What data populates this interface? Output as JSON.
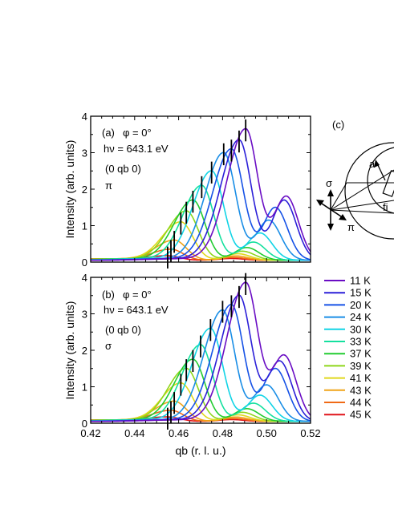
{
  "chart_data": [
    {
      "type": "line",
      "panel": "(a)",
      "annotations": [
        "φ = 0°",
        "hν = 643.1 eV",
        "(0 qb 0)",
        "π"
      ],
      "ylabel": "Intensity (arb. units)",
      "xlim": [
        0.42,
        0.52
      ],
      "ylim": [
        0,
        4
      ],
      "y_ticks": [
        "0",
        "1",
        "2",
        "3",
        "4"
      ],
      "series": [
        {
          "name": "11 K",
          "color": "#6a0dc4",
          "peak_x": 0.4905,
          "peak_y": 3.6,
          "sat_x": 0.509,
          "sat_y": 1.75
        },
        {
          "name": "15 K",
          "color": "#2b1fd8",
          "peak_x": 0.4875,
          "peak_y": 3.3,
          "sat_x": 0.508,
          "sat_y": 1.65
        },
        {
          "name": "20 K",
          "color": "#1652e6",
          "peak_x": 0.484,
          "peak_y": 3.05,
          "sat_x": 0.504,
          "sat_y": 1.45
        },
        {
          "name": "24 K",
          "color": "#1a8ee6",
          "peak_x": 0.4805,
          "peak_y": 2.95,
          "sat_x": 0.501,
          "sat_y": 1.1
        },
        {
          "name": "30 K",
          "color": "#12d4e6",
          "peak_x": 0.475,
          "peak_y": 2.45,
          "sat_x": 0.497,
          "sat_y": 0.75
        },
        {
          "name": "33 K",
          "color": "#14e09e",
          "peak_x": 0.4705,
          "peak_y": 2.05,
          "sat_x": 0.494,
          "sat_y": 0.5
        },
        {
          "name": "37 K",
          "color": "#22cc30",
          "peak_x": 0.4665,
          "peak_y": 1.65,
          "sat_x": 0.491,
          "sat_y": 0.35
        },
        {
          "name": "39 K",
          "color": "#8ed61a",
          "peak_x": 0.4635,
          "peak_y": 1.35,
          "sat_x": 0.489,
          "sat_y": 0.25
        },
        {
          "name": "41 K",
          "color": "#e0d81c",
          "peak_x": 0.461,
          "peak_y": 1.05,
          "sat_x": 0.487,
          "sat_y": 0.18
        },
        {
          "name": "43 K",
          "color": "#f0a418",
          "peak_x": 0.458,
          "peak_y": 0.55,
          "sat_x": 0.486,
          "sat_y": 0.12
        },
        {
          "name": "44 K",
          "color": "#f06a16",
          "peak_x": 0.4565,
          "peak_y": 0.3,
          "sat_x": 0.485,
          "sat_y": 0.08
        },
        {
          "name": "45 K",
          "color": "#e0141a",
          "peak_x": 0.455,
          "peak_y": 0.12,
          "sat_x": 0.484,
          "sat_y": 0.05
        }
      ]
    },
    {
      "type": "line",
      "panel": "(b)",
      "annotations": [
        "φ = 0°",
        "hν = 643.1 eV",
        "(0 qb 0)",
        "σ"
      ],
      "ylabel": "Intensity (arb. units)",
      "xlabel": "qb (r. l. u.)",
      "xlim": [
        0.42,
        0.52
      ],
      "ylim": [
        0,
        4
      ],
      "x_ticks": [
        "0.42",
        "0.44",
        "0.46",
        "0.48",
        "0.50",
        "0.52"
      ],
      "y_ticks": [
        "0",
        "1",
        "2",
        "3",
        "4"
      ],
      "series": [
        {
          "name": "11 K",
          "color": "#6a0dc4",
          "peak_x": 0.4905,
          "peak_y": 3.8,
          "sat_x": 0.508,
          "sat_y": 1.8
        },
        {
          "name": "15 K",
          "color": "#2b1fd8",
          "peak_x": 0.4875,
          "peak_y": 3.45,
          "sat_x": 0.506,
          "sat_y": 1.65
        },
        {
          "name": "20 K",
          "color": "#1652e6",
          "peak_x": 0.484,
          "peak_y": 3.2,
          "sat_x": 0.504,
          "sat_y": 1.45
        },
        {
          "name": "24 K",
          "color": "#1a8ee6",
          "peak_x": 0.48,
          "peak_y": 3.05,
          "sat_x": 0.5,
          "sat_y": 1.0
        },
        {
          "name": "30 K",
          "color": "#12d4e6",
          "peak_x": 0.4745,
          "peak_y": 2.55,
          "sat_x": 0.497,
          "sat_y": 0.72
        },
        {
          "name": "33 K",
          "color": "#14e09e",
          "peak_x": 0.47,
          "peak_y": 2.1,
          "sat_x": 0.494,
          "sat_y": 0.5
        },
        {
          "name": "37 K",
          "color": "#22cc30",
          "peak_x": 0.4665,
          "peak_y": 1.7,
          "sat_x": 0.491,
          "sat_y": 0.35
        },
        {
          "name": "39 K",
          "color": "#8ed61a",
          "peak_x": 0.4635,
          "peak_y": 1.45,
          "sat_x": 0.489,
          "sat_y": 0.25
        },
        {
          "name": "41 K",
          "color": "#e0d81c",
          "peak_x": 0.461,
          "peak_y": 1.05,
          "sat_x": 0.487,
          "sat_y": 0.18
        },
        {
          "name": "43 K",
          "color": "#f0a418",
          "peak_x": 0.458,
          "peak_y": 0.55,
          "sat_x": 0.486,
          "sat_y": 0.12
        },
        {
          "name": "44 K",
          "color": "#f06a16",
          "peak_x": 0.4565,
          "peak_y": 0.3,
          "sat_x": 0.485,
          "sat_y": 0.08
        },
        {
          "name": "45 K",
          "color": "#e0141a",
          "peak_x": 0.455,
          "peak_y": 0.12,
          "sat_x": 0.484,
          "sat_y": 0.05
        }
      ]
    }
  ],
  "legend": {
    "placement": "right",
    "entries": [
      "11 K",
      "15 K",
      "20 K",
      "24 K",
      "30 K",
      "33 K",
      "37 K",
      "39 K",
      "41 K",
      "43 K",
      "44 K",
      "45 K"
    ]
  },
  "panel_c": {
    "label": "(c)",
    "text_labels": [
      "σ",
      "π",
      "a",
      "fi"
    ]
  }
}
